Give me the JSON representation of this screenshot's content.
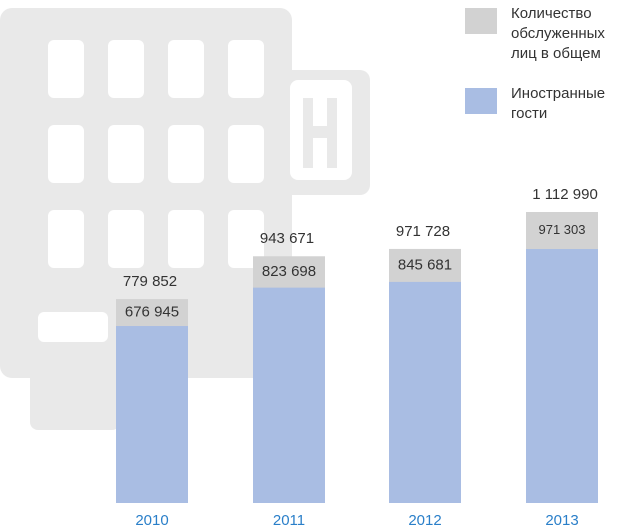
{
  "chart_data": {
    "type": "bar",
    "categories": [
      "2010",
      "2011",
      "2012",
      "2013"
    ],
    "series": [
      {
        "name": "Количество обслуженных лиц в общем",
        "color": "#d2d2d2",
        "values": [
          779852,
          943671,
          971728,
          1112990
        ],
        "value_labels": [
          "779 852",
          "943 671",
          "971 728",
          "1 112 990"
        ]
      },
      {
        "name": "Иностранные гости",
        "color": "#a9bde3",
        "values": [
          676945,
          823698,
          845681,
          971303
        ],
        "value_labels": [
          "676 945",
          "823 698",
          "845 681",
          "971 303"
        ]
      }
    ]
  }
}
